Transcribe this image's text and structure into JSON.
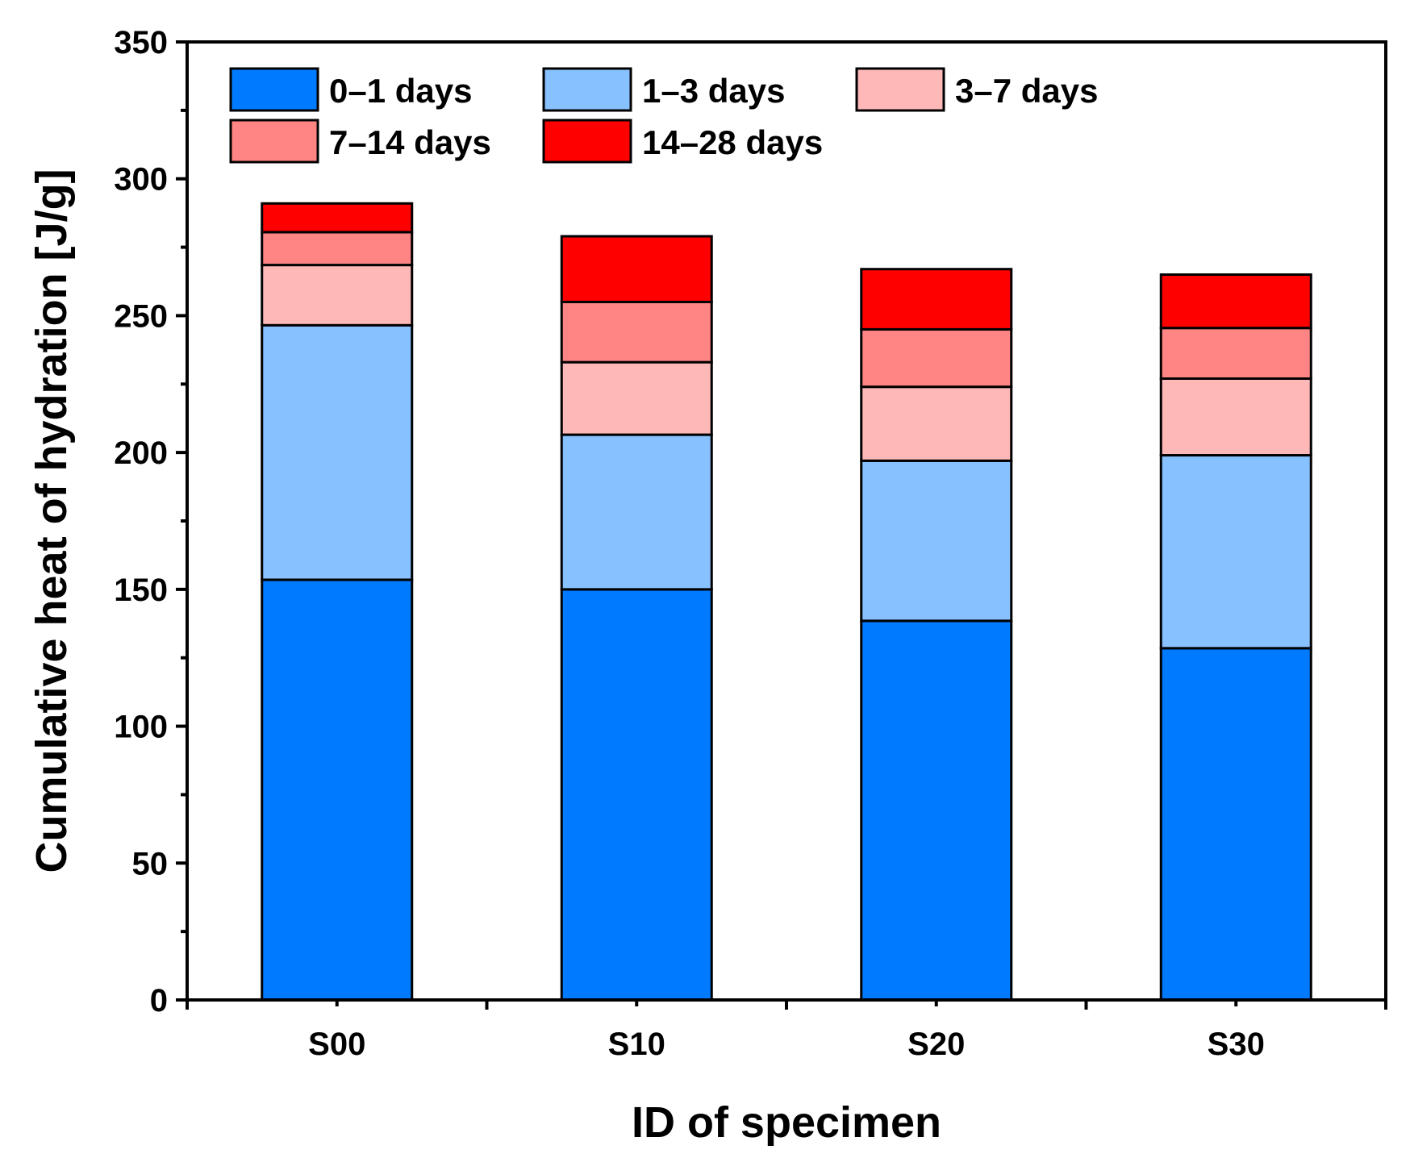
{
  "chart_data": {
    "type": "bar",
    "stacked": true,
    "title": "",
    "xlabel": "ID of specimen",
    "ylabel": "Cumulative heat of hydration [J/g]",
    "ylim": [
      0,
      350
    ],
    "yticks": [
      0,
      50,
      100,
      150,
      200,
      250,
      300,
      350
    ],
    "categories": [
      "S00",
      "S10",
      "S20",
      "S30"
    ],
    "series": [
      {
        "name": "0–1 days",
        "color": "#007BFF",
        "values": [
          153.5,
          150.0,
          138.5,
          128.5
        ]
      },
      {
        "name": "1–3 days",
        "color": "#87C1FF",
        "values": [
          93.0,
          56.5,
          58.5,
          70.5
        ]
      },
      {
        "name": "3–7 days",
        "color": "#FFB8B8",
        "values": [
          22.0,
          26.5,
          27.0,
          28.0
        ]
      },
      {
        "name": "7–14 days",
        "color": "#FF8585",
        "values": [
          12.0,
          22.0,
          21.0,
          18.5
        ]
      },
      {
        "name": "14–28 days",
        "color": "#FF0000",
        "values": [
          10.5,
          24.0,
          22.0,
          19.5
        ]
      }
    ],
    "legend_position": "top-left"
  }
}
